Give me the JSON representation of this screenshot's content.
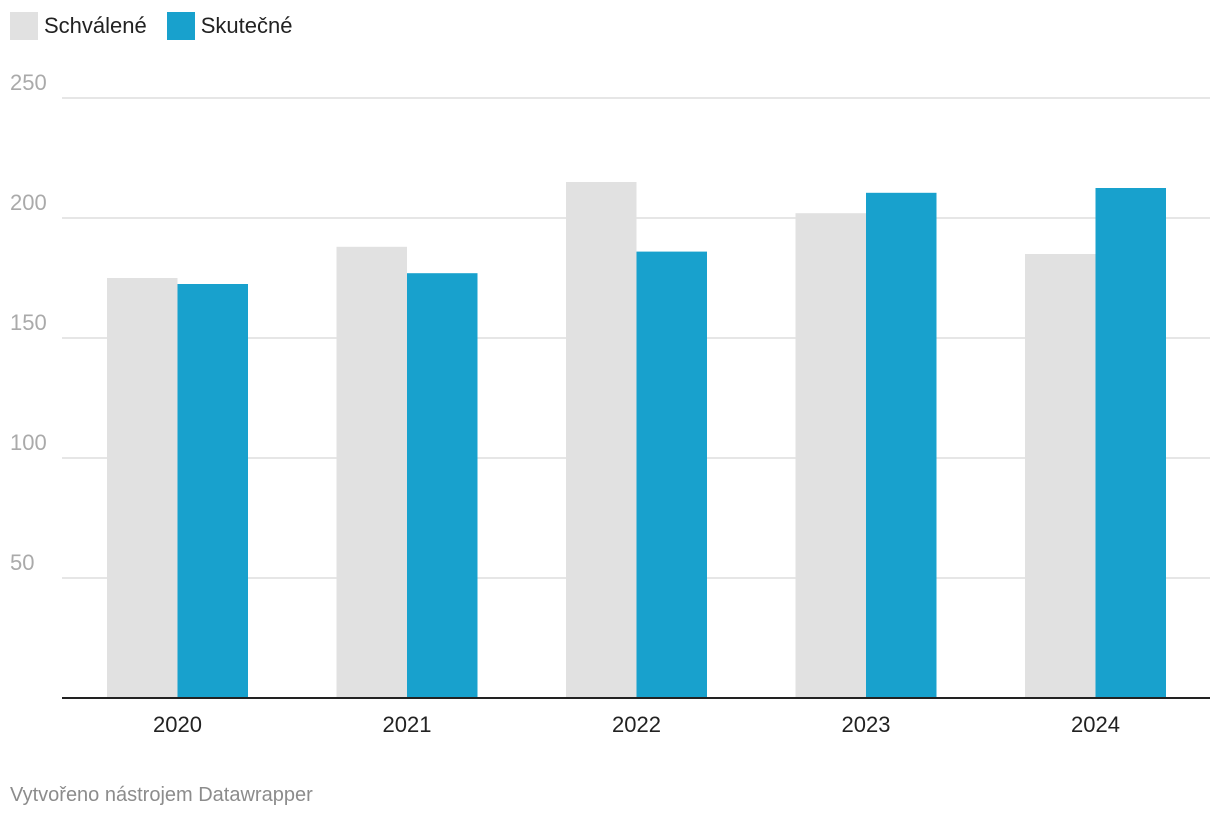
{
  "legend": {
    "items": [
      {
        "label": "Schválené",
        "color": "#e1e1e1"
      },
      {
        "label": "Skutečné",
        "color": "#18a1cd"
      }
    ]
  },
  "credit": "Vytvořeno nástrojem Datawrapper",
  "chart_data": {
    "type": "bar",
    "categories": [
      "2020",
      "2021",
      "2022",
      "2023",
      "2024"
    ],
    "series": [
      {
        "name": "Schválené",
        "color": "#e1e1e1",
        "values": [
          175,
          188,
          215,
          202,
          185
        ]
      },
      {
        "name": "Skutečné",
        "color": "#18a1cd",
        "values": [
          172.5,
          177,
          186,
          210.5,
          212.5
        ]
      }
    ],
    "yticks": [
      50,
      100,
      150,
      200,
      250
    ],
    "ylim": [
      0,
      250
    ],
    "grid": true,
    "legend_position": "top-left",
    "title": "",
    "xlabel": "",
    "ylabel": ""
  }
}
